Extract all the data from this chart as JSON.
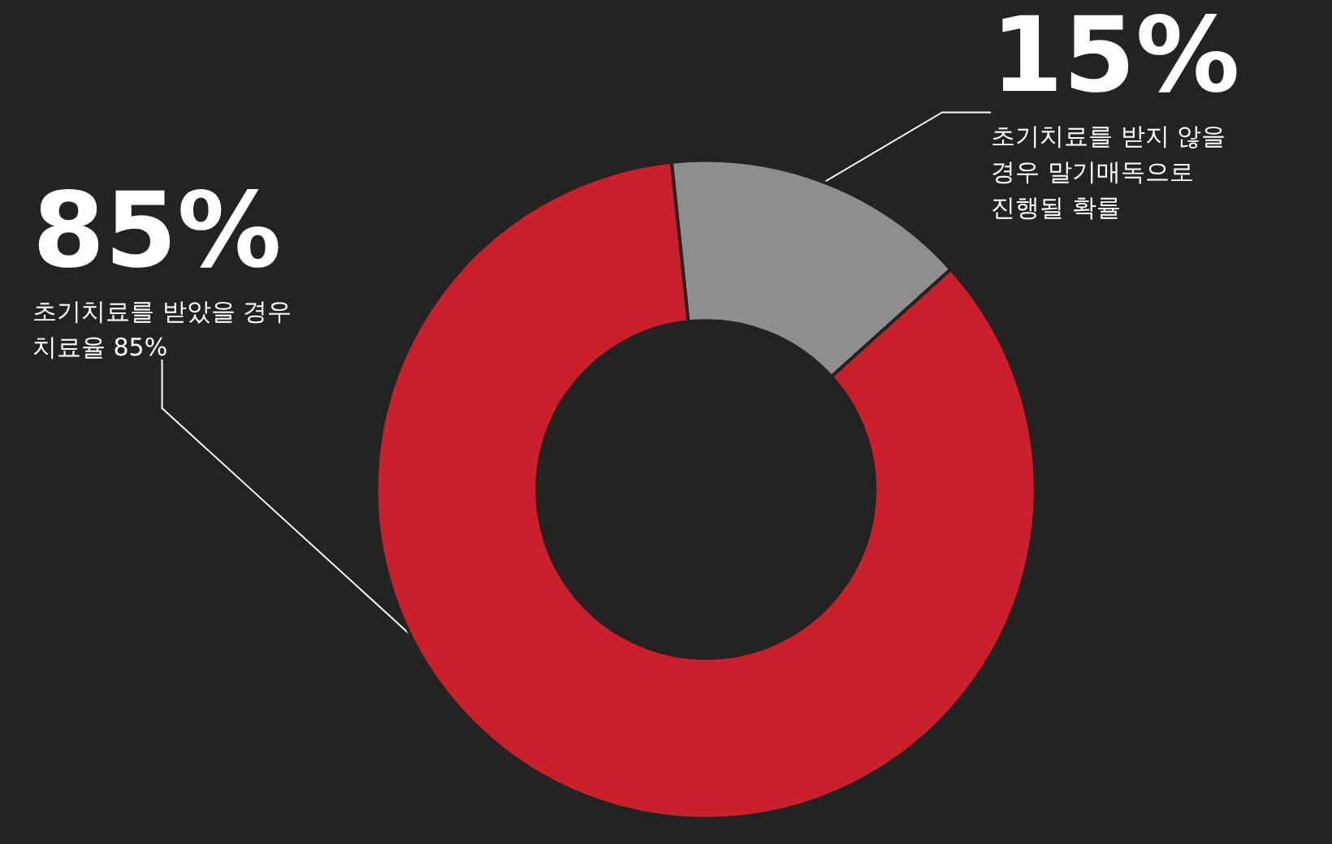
{
  "chart_data": {
    "type": "donut",
    "categories": [
      "초기치료를 받지 않을 경우 말기매독으로 진행될 확률",
      "초기치료를 받았을 경우 치료율 85%"
    ],
    "values": [
      15,
      85
    ],
    "colors": [
      "#8e8e8e",
      "#c9202b"
    ],
    "value_labels": [
      "15%",
      "85%"
    ],
    "legend": false
  }
}
